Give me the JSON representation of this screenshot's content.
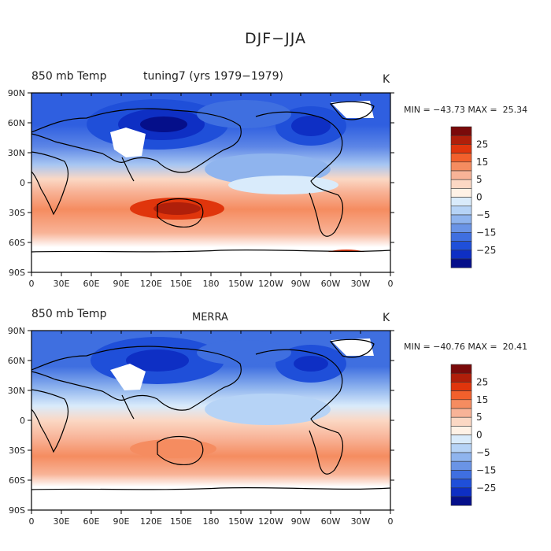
{
  "title": "DJF−JJA",
  "panels": [
    {
      "left_title": "850 mb Temp",
      "center_title": "tuning7 (yrs 1979−1979)",
      "units": "K",
      "minmax": "MIN = −43.73 MAX =  25.34"
    },
    {
      "left_title": "850 mb Temp",
      "center_title": "MERRA",
      "units": "K",
      "minmax": "MIN = −40.76 MAX =  20.41"
    }
  ],
  "x_ticks": [
    "0",
    "30E",
    "60E",
    "90E",
    "120E",
    "150E",
    "180",
    "150W",
    "120W",
    "90W",
    "60W",
    "30W",
    "0"
  ],
  "y_ticks": [
    "90N",
    "60N",
    "30N",
    "0",
    "30S",
    "60S",
    "90S"
  ],
  "colorbar": {
    "labels": [
      "25",
      "15",
      "5",
      "0",
      "−5",
      "−15",
      "−25"
    ],
    "colors": [
      "#7a0a0a",
      "#b01f0a",
      "#e0350c",
      "#f2602c",
      "#f58c60",
      "#f8b397",
      "#fbd8c4",
      "#fff2e6",
      "#d9ebfb",
      "#b6d3f6",
      "#8fb4ee",
      "#6a94e6",
      "#3f6fe0",
      "#1f4fd9",
      "#0e2fc4",
      "#050f8a"
    ]
  }
}
